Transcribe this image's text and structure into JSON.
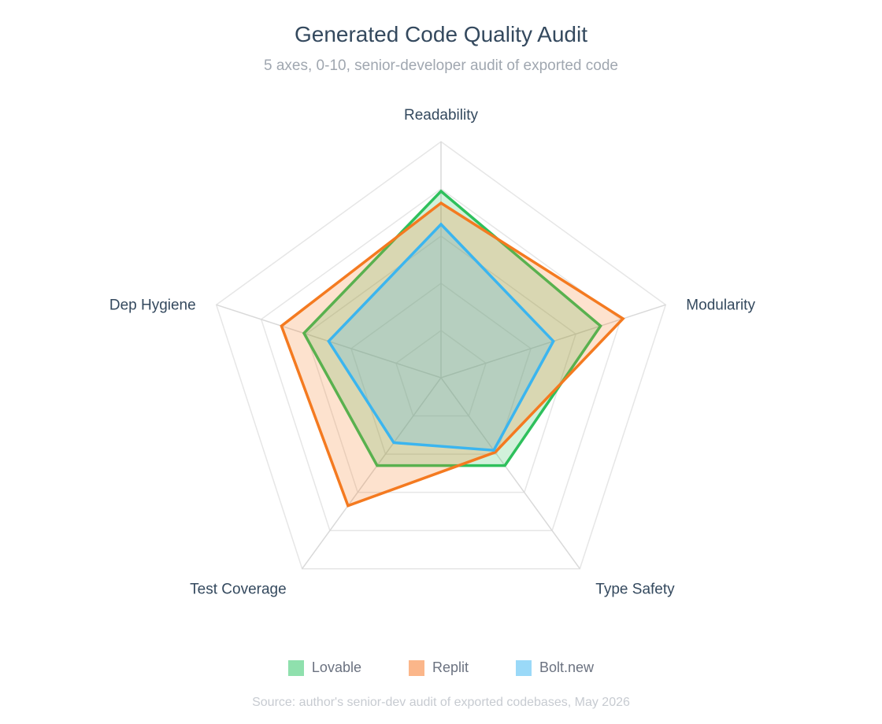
{
  "chart_data": {
    "type": "radar",
    "title": "Generated Code Quality Audit",
    "subtitle": "5 axes, 0-10, senior-developer audit of exported code",
    "axes": [
      "Readability",
      "Modularity",
      "Type Safety",
      "Test Coverage",
      "Dep Hygiene"
    ],
    "range": [
      0,
      10
    ],
    "grid_levels": [
      2,
      4,
      6,
      8,
      10
    ],
    "series": [
      {
        "name": "Lovable",
        "values": [
          7.9,
          7.1,
          4.6,
          4.6,
          6.1
        ],
        "color": "#2ec05c",
        "fill": "rgba(46,192,92,0.22)"
      },
      {
        "name": "Replit",
        "values": [
          7.4,
          8.1,
          3.9,
          6.7,
          7.1
        ],
        "color": "#f47a20",
        "fill": "rgba(244,122,32,0.22)"
      },
      {
        "name": "Bolt.new",
        "values": [
          6.5,
          5.0,
          3.8,
          3.4,
          5.0
        ],
        "color": "#3bb5ef",
        "fill": "rgba(59,181,239,0.22)"
      }
    ],
    "legend": {
      "placement": "bottom"
    },
    "source": "Source: author's senior-dev audit of exported codebases, May 2026"
  }
}
